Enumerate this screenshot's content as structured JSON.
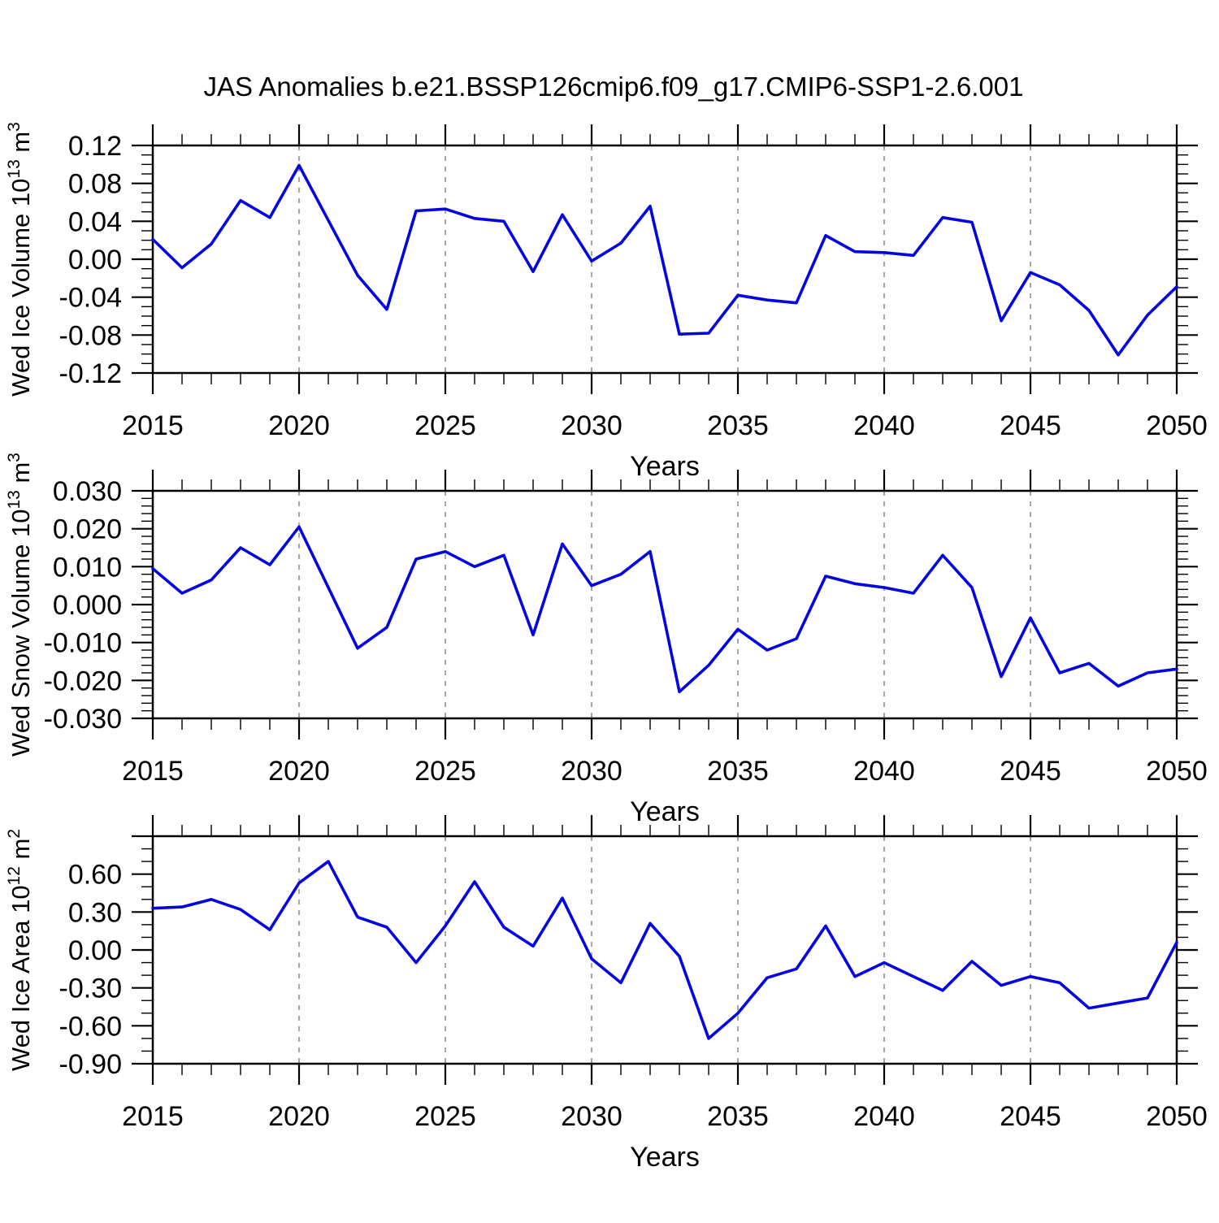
{
  "title": "JAS Anomalies b.e21.BSSP126cmip6.f09_g17.CMIP6-SSP1-2.6.001",
  "colors": {
    "line": "#0505e0",
    "grid": "#8a8a8a",
    "axis": "#000000",
    "background": "#ffffff"
  },
  "x_axis": {
    "label": "Years",
    "years": [
      2015,
      2016,
      2017,
      2018,
      2019,
      2020,
      2021,
      2022,
      2023,
      2024,
      2025,
      2026,
      2027,
      2028,
      2029,
      2030,
      2031,
      2032,
      2033,
      2034,
      2035,
      2036,
      2037,
      2038,
      2039,
      2040,
      2041,
      2042,
      2043,
      2044,
      2045,
      2046,
      2047,
      2048,
      2049,
      2050
    ],
    "tick_labels": [
      "2015",
      "2020",
      "2025",
      "2030",
      "2035",
      "2040",
      "2045",
      "2050"
    ],
    "grid_years": [
      2020,
      2025,
      2030,
      2035,
      2040,
      2045
    ],
    "minor_step": 1,
    "major_step": 5
  },
  "chart_data": [
    {
      "type": "line",
      "series_name": "Wed Ice Volume anomaly",
      "ylabel": {
        "base": "Wed Ice Volume 10",
        "exp": "13",
        "unit": " m",
        "unit_exp": "3"
      },
      "ylim": [
        -0.12,
        0.12
      ],
      "ytick_step": 0.04,
      "yminor_step": 0.01,
      "ytick_values": [
        0.12,
        0.08,
        0.04,
        0.0,
        -0.04,
        -0.08,
        -0.12
      ],
      "ytick_labels": [
        "0.12",
        "0.08",
        "0.04",
        "0.00",
        "-0.04",
        "-0.08",
        "-0.12"
      ],
      "x": [
        2015,
        2016,
        2017,
        2018,
        2019,
        2020,
        2021,
        2022,
        2023,
        2024,
        2025,
        2026,
        2027,
        2028,
        2029,
        2030,
        2031,
        2032,
        2033,
        2034,
        2035,
        2036,
        2037,
        2038,
        2039,
        2040,
        2041,
        2042,
        2043,
        2044,
        2045,
        2046,
        2047,
        2048,
        2049,
        2050
      ],
      "values": [
        0.021,
        -0.009,
        0.016,
        0.062,
        0.044,
        0.099,
        0.041,
        -0.017,
        -0.053,
        0.051,
        0.053,
        0.043,
        0.04,
        -0.013,
        0.047,
        -0.002,
        0.017,
        0.056,
        -0.079,
        -0.078,
        -0.038,
        -0.043,
        -0.046,
        0.025,
        0.008,
        0.007,
        0.004,
        0.044,
        0.039,
        -0.065,
        -0.014,
        -0.027,
        -0.054,
        -0.101,
        -0.059,
        -0.029
      ]
    },
    {
      "type": "line",
      "series_name": "Wed Snow Volume anomaly",
      "ylabel": {
        "base": "Wed Snow Volume 10",
        "exp": "13",
        "unit": " m",
        "unit_exp": "3"
      },
      "ylim": [
        -0.03,
        0.03
      ],
      "ytick_step": 0.01,
      "yminor_step": 0.002,
      "ytick_values": [
        0.03,
        0.02,
        0.01,
        0.0,
        -0.01,
        -0.02,
        -0.03
      ],
      "ytick_labels": [
        "0.030",
        "0.020",
        "0.010",
        "0.000",
        "-0.010",
        "-0.020",
        "-0.030"
      ],
      "x": [
        2015,
        2016,
        2017,
        2018,
        2019,
        2020,
        2021,
        2022,
        2023,
        2024,
        2025,
        2026,
        2027,
        2028,
        2029,
        2030,
        2031,
        2032,
        2033,
        2034,
        2035,
        2036,
        2037,
        2038,
        2039,
        2040,
        2041,
        2042,
        2043,
        2044,
        2045,
        2046,
        2047,
        2048,
        2049,
        2050
      ],
      "values": [
        0.0095,
        0.003,
        0.0065,
        0.015,
        0.0105,
        0.0205,
        0.0045,
        -0.0115,
        -0.006,
        0.012,
        0.014,
        0.01,
        0.013,
        -0.008,
        0.016,
        0.005,
        0.008,
        0.014,
        -0.023,
        -0.016,
        -0.0065,
        -0.012,
        -0.009,
        0.0075,
        0.0055,
        0.0045,
        0.003,
        0.013,
        0.0045,
        -0.019,
        -0.0035,
        -0.018,
        -0.0155,
        -0.0215,
        -0.018,
        -0.017
      ]
    },
    {
      "type": "line",
      "series_name": "Wed Ice Area anomaly",
      "ylabel": {
        "base": "Wed Ice Area 10",
        "exp": "12",
        "unit": " m",
        "unit_exp": "2"
      },
      "ylim": [
        -0.9,
        0.9
      ],
      "ytick_step": 0.3,
      "yminor_step": 0.1,
      "ytick_values": [
        0.6,
        0.3,
        0.0,
        -0.3,
        -0.6,
        -0.9
      ],
      "ytick_labels": [
        "0.60",
        "0.30",
        "0.00",
        "-0.30",
        "-0.60",
        "-0.90"
      ],
      "x": [
        2015,
        2016,
        2017,
        2018,
        2019,
        2020,
        2021,
        2022,
        2023,
        2024,
        2025,
        2026,
        2027,
        2028,
        2029,
        2030,
        2031,
        2032,
        2033,
        2034,
        2035,
        2036,
        2037,
        2038,
        2039,
        2040,
        2041,
        2042,
        2043,
        2044,
        2045,
        2046,
        2047,
        2048,
        2049,
        2050
      ],
      "values": [
        0.33,
        0.34,
        0.4,
        0.32,
        0.16,
        0.53,
        0.7,
        0.26,
        0.18,
        -0.1,
        0.19,
        0.54,
        0.18,
        0.03,
        0.41,
        -0.07,
        -0.26,
        0.21,
        -0.05,
        -0.7,
        -0.5,
        -0.22,
        -0.15,
        0.19,
        -0.21,
        -0.1,
        -0.21,
        -0.32,
        -0.09,
        -0.28,
        -0.21,
        -0.26,
        -0.46,
        -0.42,
        -0.38,
        0.06
      ]
    }
  ]
}
